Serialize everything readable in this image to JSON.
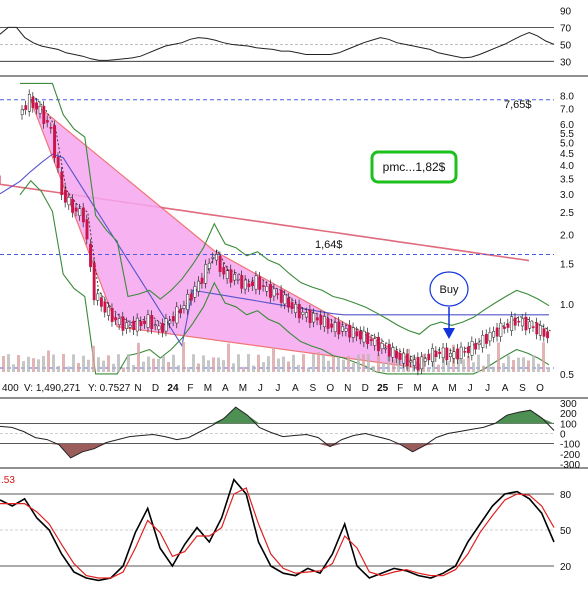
{
  "chart_data": [
    {
      "type": "line",
      "panel": "rsi",
      "y_ticks": [
        "90",
        "70",
        "50",
        "30"
      ],
      "y_tick_values": [
        90,
        70,
        50,
        30
      ],
      "ylim": [
        15,
        100
      ],
      "series": [
        {
          "values": [
            62,
            70,
            70,
            58,
            52,
            48,
            46,
            44,
            40,
            38,
            36,
            33,
            31,
            31,
            32,
            33,
            34,
            36,
            40,
            44,
            48,
            50,
            52,
            56,
            58,
            57,
            55,
            52,
            50,
            49,
            48,
            46,
            45,
            44,
            42,
            42,
            40,
            38,
            38,
            38,
            38,
            40,
            44,
            48,
            52,
            55,
            58,
            56,
            52,
            50,
            48,
            46,
            44,
            40,
            38,
            36,
            34,
            35,
            38,
            42,
            46,
            50,
            55,
            60,
            64,
            60,
            54,
            50
          ]
        }
      ]
    },
    {
      "type": "line",
      "panel": "price",
      "scale": "log",
      "y_ticks": [
        "8.0",
        "7.0",
        "6.0",
        "5.5",
        "5.0",
        "4.5",
        "4.0",
        "3.5",
        "3.0",
        "2.5",
        "2.0",
        "1.5",
        "1.0",
        "0.5"
      ],
      "y_tick_values": [
        8.0,
        7.0,
        6.0,
        5.5,
        5.0,
        4.5,
        4.0,
        3.5,
        3.0,
        2.5,
        2.0,
        1.5,
        1.0,
        0.5
      ],
      "x_ticks": [
        "N",
        "D",
        "24",
        "F",
        "M",
        "A",
        "M",
        "J",
        "J",
        "A",
        "S",
        "O",
        "N",
        "D",
        "25",
        "F",
        "M",
        "A",
        "M",
        "J",
        "J",
        "A",
        "S",
        "O"
      ],
      "bold_x_ticks": [
        "24",
        "25"
      ],
      "annotations": [
        "7,65$",
        "1,64$",
        "pmc...1,82$",
        "Buy"
      ],
      "horizontal_levels": [
        7.65,
        1.64,
        0.53
      ],
      "close_series": [
        {
          "x": "Nov-23",
          "y": 6.6
        },
        {
          "x": "Nov-23",
          "y": 7.6
        },
        {
          "x": "Dec-23",
          "y": 6.8
        },
        {
          "x": "Dec-23",
          "y": 5.6
        },
        {
          "x": "Dec-23",
          "y": 3.0
        },
        {
          "x": "Jan-24",
          "y": 2.6
        },
        {
          "x": "Jan-24",
          "y": 2.4
        },
        {
          "x": "Jan-24",
          "y": 1.1
        },
        {
          "x": "Feb-24",
          "y": 0.95
        },
        {
          "x": "Feb-24",
          "y": 0.85
        },
        {
          "x": "Mar-24",
          "y": 0.8
        },
        {
          "x": "Mar-24",
          "y": 0.82
        },
        {
          "x": "Apr-24",
          "y": 0.85
        },
        {
          "x": "Apr-24",
          "y": 0.78
        },
        {
          "x": "May-24",
          "y": 0.85
        },
        {
          "x": "May-24",
          "y": 0.95
        },
        {
          "x": "Jun-24",
          "y": 1.1
        },
        {
          "x": "Jun-24",
          "y": 1.3
        },
        {
          "x": "Jul-24",
          "y": 1.65
        },
        {
          "x": "Jul-24",
          "y": 1.35
        },
        {
          "x": "Aug-24",
          "y": 1.3
        },
        {
          "x": "Aug-24",
          "y": 1.2
        },
        {
          "x": "Sep-24",
          "y": 1.25
        },
        {
          "x": "Sep-24",
          "y": 1.15
        },
        {
          "x": "Oct-24",
          "y": 1.1
        },
        {
          "x": "Oct-24",
          "y": 1.0
        },
        {
          "x": "Nov-24",
          "y": 0.92
        },
        {
          "x": "Nov-24",
          "y": 0.88
        },
        {
          "x": "Dec-24",
          "y": 0.85
        },
        {
          "x": "Dec-24",
          "y": 0.8
        },
        {
          "x": "Jan-25",
          "y": 0.78
        },
        {
          "x": "Jan-25",
          "y": 0.75
        },
        {
          "x": "Feb-25",
          "y": 0.72
        },
        {
          "x": "Feb-25",
          "y": 0.68
        },
        {
          "x": "Mar-25",
          "y": 0.64
        },
        {
          "x": "Mar-25",
          "y": 0.6
        },
        {
          "x": "Apr-25",
          "y": 0.57
        },
        {
          "x": "Apr-25",
          "y": 0.55
        },
        {
          "x": "May-25",
          "y": 0.6
        },
        {
          "x": "May-25",
          "y": 0.62
        },
        {
          "x": "Jun-25",
          "y": 0.6
        },
        {
          "x": "Jun-25",
          "y": 0.62
        },
        {
          "x": "Jul-25",
          "y": 0.65
        },
        {
          "x": "Jul-25",
          "y": 0.7
        },
        {
          "x": "Aug-25",
          "y": 0.75
        },
        {
          "x": "Aug-25",
          "y": 0.8
        },
        {
          "x": "Sep-25",
          "y": 0.85
        },
        {
          "x": "Sep-25",
          "y": 0.82
        },
        {
          "x": "Oct-25",
          "y": 0.78
        },
        {
          "x": "Oct-25",
          "y": 0.73
        }
      ],
      "status_line": {
        "left": "400",
        "v": "V: 1,490,271",
        "y": "Y: 0.7527"
      }
    },
    {
      "type": "area",
      "panel": "cci",
      "y_ticks": [
        "300",
        "200",
        "100",
        "0",
        "-100",
        "-200",
        "-300"
      ],
      "y_tick_values": [
        300,
        200,
        100,
        0,
        -100,
        -200,
        -300
      ],
      "ylim": [
        -320,
        330
      ],
      "series": [
        {
          "values": [
            70,
            60,
            20,
            -40,
            -60,
            -110,
            -240,
            -180,
            -150,
            -90,
            -60,
            -30,
            -20,
            -10,
            -30,
            -60,
            -40,
            20,
            80,
            150,
            260,
            180,
            60,
            10,
            -30,
            -20,
            -10,
            -40,
            -130,
            -60,
            -20,
            0,
            -30,
            -60,
            -110,
            -180,
            -120,
            -40,
            0,
            20,
            40,
            60,
            100,
            180,
            210,
            230,
            150,
            30
          ]
        }
      ]
    },
    {
      "type": "line",
      "panel": "stochastic",
      "label": ".53",
      "y_ticks": [
        "80",
        "50",
        "20"
      ],
      "y_tick_values": [
        80,
        50,
        20
      ],
      "ylim": [
        0,
        100
      ],
      "series": [
        {
          "color": "#000000",
          "values": [
            75,
            70,
            76,
            60,
            50,
            30,
            15,
            10,
            8,
            10,
            20,
            48,
            68,
            35,
            20,
            38,
            52,
            40,
            60,
            92,
            80,
            40,
            20,
            14,
            12,
            18,
            14,
            30,
            55,
            20,
            10,
            14,
            18,
            16,
            12,
            10,
            14,
            20,
            40,
            55,
            70,
            80,
            82,
            76,
            64,
            40
          ]
        },
        {
          "color": "#e02020",
          "values": [
            72,
            72,
            72,
            65,
            55,
            38,
            22,
            12,
            10,
            10,
            15,
            35,
            58,
            48,
            28,
            32,
            45,
            45,
            52,
            80,
            85,
            55,
            30,
            18,
            14,
            15,
            16,
            22,
            45,
            35,
            15,
            12,
            15,
            17,
            14,
            12,
            12,
            17,
            30,
            48,
            62,
            75,
            80,
            79,
            70,
            52
          ]
        }
      ]
    }
  ],
  "colors": {
    "wedge_fill": "#f6a6ef",
    "wedge_edge": "#ee5f5f",
    "ma_long": "#e06b7e",
    "ma_mid": "#5555cc",
    "bollinger": "#3a8a3a",
    "level_line": "#4a5de0",
    "pmc_box": "#1ec01e",
    "buy_arrow": "#1133dd",
    "cci_pos": "#4e8f53",
    "cci_neg": "#9b5c5c",
    "stoch_k": "#000000",
    "stoch_d": "#e02020"
  }
}
